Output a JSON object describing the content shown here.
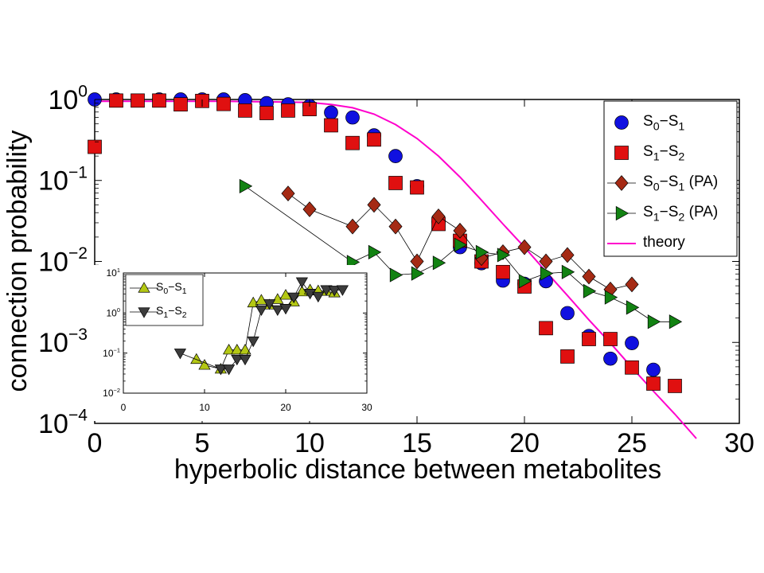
{
  "chart_data": [
    {
      "type": "scatter",
      "xlabel": "hyperbolic distance between metabolites",
      "ylabel": "connection probability",
      "xlim": [
        0,
        30
      ],
      "ylim": [
        0.0001,
        1
      ],
      "yscale": "log",
      "grid": false,
      "legend_position": "top-right",
      "xticks": [
        "0",
        "5",
        "10",
        "15",
        "20",
        "25",
        "30"
      ],
      "yticks": [
        {
          "base": "10",
          "exp": "0",
          "value": 1
        },
        {
          "base": "10",
          "exp": "−1",
          "value": 0.1
        },
        {
          "base": "10",
          "exp": "−2",
          "value": 0.01
        },
        {
          "base": "10",
          "exp": "−3",
          "value": 0.001
        },
        {
          "base": "10",
          "exp": "−4",
          "value": 0.0001
        }
      ],
      "series": [
        {
          "name": "S0−S1",
          "label": {
            "a": "S",
            "a_sub": "0",
            "b": "−S",
            "b_sub": "1",
            "suffix": ""
          },
          "marker": "circle",
          "color": "#1010e0",
          "line": false,
          "x": [
            0,
            1,
            3,
            4,
            5,
            6,
            7,
            8,
            9,
            10,
            11,
            12,
            13,
            14,
            15,
            16,
            17,
            18,
            19,
            20,
            21,
            22,
            23,
            24,
            25,
            26
          ],
          "y": [
            1.0,
            1.0,
            1.0,
            1.0,
            1.0,
            1.0,
            0.98,
            0.9,
            0.87,
            0.83,
            0.69,
            0.6,
            0.36,
            0.2,
            0.085,
            0.031,
            0.015,
            0.0095,
            0.0058,
            0.0053,
            0.0057,
            0.0023,
            0.0012,
            0.00063,
            0.00098,
            0.00046
          ]
        },
        {
          "name": "S1−S2",
          "label": {
            "a": "S",
            "a_sub": "1",
            "b": "−S",
            "b_sub": "2",
            "suffix": ""
          },
          "marker": "square",
          "color": "#e01010",
          "line": false,
          "x": [
            0,
            1,
            2,
            3,
            4,
            5,
            6,
            7,
            8,
            9,
            10,
            11,
            12,
            13,
            14,
            15,
            16,
            17,
            18,
            19,
            20,
            21,
            22,
            23,
            24,
            25,
            26,
            27
          ],
          "y": [
            0.26,
            0.97,
            0.97,
            0.97,
            0.87,
            0.96,
            0.88,
            0.73,
            0.68,
            0.73,
            0.76,
            0.48,
            0.29,
            0.32,
            0.093,
            0.082,
            0.029,
            0.018,
            0.01,
            0.0074,
            0.0049,
            0.0015,
            0.00067,
            0.0011,
            0.0011,
            0.00049,
            0.00031,
            0.00029
          ]
        },
        {
          "name": "S0−S1 (PA)",
          "label": {
            "a": "S",
            "a_sub": "0",
            "b": "−S",
            "b_sub": "1",
            "suffix": " (PA)"
          },
          "marker": "diamond",
          "color": "#a52a14",
          "line": true,
          "x": [
            9,
            10,
            12,
            13,
            14,
            15,
            16,
            17,
            18,
            19,
            20,
            21,
            22,
            23,
            24,
            25
          ],
          "y": [
            0.069,
            0.044,
            0.027,
            0.05,
            0.027,
            0.01,
            0.036,
            0.024,
            0.011,
            0.013,
            0.015,
            0.01,
            0.012,
            0.0065,
            0.0045,
            0.0052
          ]
        },
        {
          "name": "S1−S2 (PA)",
          "label": {
            "a": "S",
            "a_sub": "1",
            "b": "−S",
            "b_sub": "2",
            "suffix": " (PA)"
          },
          "marker": "triangle-right",
          "color": "#128212",
          "line": true,
          "x": [
            7,
            12,
            13,
            14,
            15,
            16,
            17,
            18,
            19,
            20,
            21,
            22,
            23,
            24,
            25,
            26,
            27
          ],
          "y": [
            0.085,
            0.0098,
            0.013,
            0.0068,
            0.0071,
            0.0096,
            0.016,
            0.013,
            0.012,
            0.0057,
            0.0071,
            0.0074,
            0.0043,
            0.0036,
            0.0027,
            0.0018,
            0.0018
          ]
        },
        {
          "name": "theory",
          "label": {
            "a": "theory",
            "a_sub": "",
            "b": "",
            "b_sub": "",
            "suffix": ""
          },
          "marker": "none",
          "color": "#ff00cc",
          "line": true,
          "x": [
            0,
            6,
            9,
            10,
            11,
            12,
            13,
            14,
            15,
            16,
            17,
            18,
            19,
            20,
            21,
            22,
            23,
            24,
            25,
            26,
            27,
            28
          ],
          "y": [
            0.95,
            0.95,
            0.93,
            0.92,
            0.87,
            0.79,
            0.66,
            0.49,
            0.33,
            0.2,
            0.11,
            0.057,
            0.029,
            0.015,
            0.0075,
            0.0038,
            0.0019,
            0.00098,
            0.00049,
            0.00025,
            0.00013,
            6.5e-05
          ]
        }
      ]
    },
    {
      "type": "scatter",
      "xlabel": "",
      "ylabel": "",
      "xlim": [
        0,
        30
      ],
      "ylim": [
        0.01,
        10
      ],
      "yscale": "log",
      "grid": false,
      "legend_position": "top-left",
      "xticks": [
        "0",
        "10",
        "20",
        "30"
      ],
      "yticks": [
        {
          "base": "10",
          "exp": "1",
          "value": 10
        },
        {
          "base": "10",
          "exp": "0",
          "value": 1
        },
        {
          "base": "10",
          "exp": "−1",
          "value": 0.1
        },
        {
          "base": "10",
          "exp": "−2",
          "value": 0.01
        }
      ],
      "series": [
        {
          "name": "S0−S1",
          "label": {
            "a": "S",
            "a_sub": "0",
            "b": "−S",
            "b_sub": "1",
            "suffix": ""
          },
          "marker": "triangle-up",
          "color": "#b4c814",
          "line": true,
          "x": [
            9,
            10,
            12,
            13,
            14,
            15,
            16,
            17,
            18,
            19,
            20,
            21,
            22,
            23,
            24,
            25,
            26
          ],
          "y": [
            0.07,
            0.05,
            0.04,
            0.12,
            0.12,
            0.12,
            1.8,
            2.1,
            1.6,
            2.2,
            2.8,
            1.9,
            3.4,
            3.8,
            3.6,
            3.5,
            3.2
          ]
        },
        {
          "name": "S1−S2",
          "label": {
            "a": "S",
            "a_sub": "1",
            "b": "−S",
            "b_sub": "2",
            "suffix": ""
          },
          "marker": "triangle-down",
          "color": "#3c3c3c",
          "line": true,
          "x": [
            7,
            12,
            13,
            14,
            15,
            16,
            17,
            18,
            19,
            20,
            21,
            22,
            23,
            24,
            25,
            26,
            27
          ],
          "y": [
            0.1,
            0.04,
            0.04,
            0.07,
            0.07,
            0.2,
            1.2,
            1.7,
            1.2,
            1.3,
            2.5,
            6.0,
            3.1,
            2.6,
            3.8,
            3.7,
            3.8
          ]
        }
      ]
    }
  ]
}
